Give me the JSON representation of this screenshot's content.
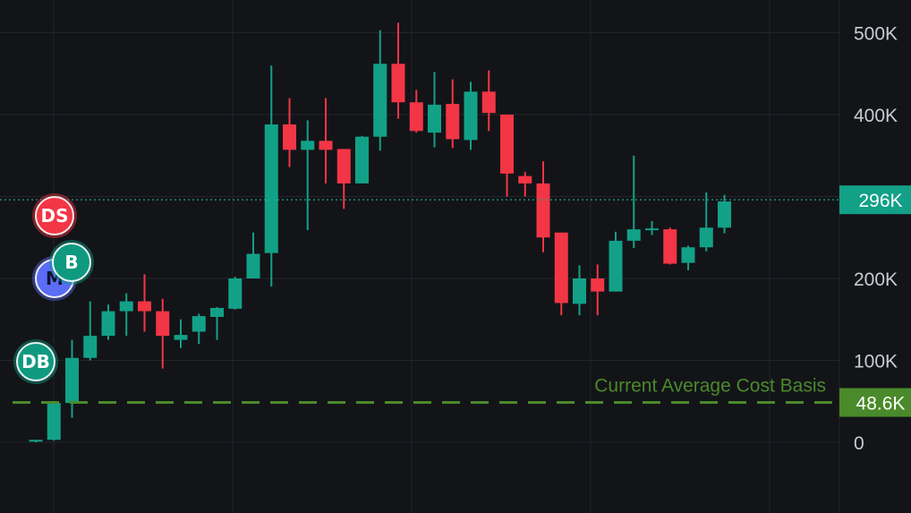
{
  "colors": {
    "background": "#131418",
    "grid": "#23252b",
    "up": "#12a187",
    "down": "#f23645",
    "current_line": "#1fa58a",
    "cost_basis": "#4a8a2a",
    "axis_text": "#c9ccd2",
    "marker_ds": "#f23645",
    "marker_b": "#0f9a80",
    "marker_db": "#0f9a80",
    "marker_m": "#5b6cf5"
  },
  "chart_data": {
    "type": "candlestick",
    "y_axis": {
      "ticks": [
        0,
        100000,
        200000,
        300000,
        400000,
        500000
      ],
      "tick_labels": [
        "0",
        "100K",
        "200K",
        "300K",
        "400K",
        "500K"
      ],
      "ylim": [
        -60000,
        545000
      ],
      "position": "right"
    },
    "grid": true,
    "current_value": {
      "value": 296000,
      "label": "296K"
    },
    "cost_basis": {
      "value": 48600,
      "label": "48.6K",
      "text": "Current Average Cost Basis"
    },
    "candles": [
      {
        "o": 2000,
        "h": 2000,
        "l": 0,
        "c": 3000
      },
      {
        "o": 3000,
        "h": 50000,
        "l": 2000,
        "c": 48000
      },
      {
        "o": 48000,
        "h": 125000,
        "l": 30000,
        "c": 103000
      },
      {
        "o": 103000,
        "h": 172000,
        "l": 100000,
        "c": 130000
      },
      {
        "o": 130000,
        "h": 168000,
        "l": 125000,
        "c": 160000
      },
      {
        "o": 160000,
        "h": 182000,
        "l": 130000,
        "c": 172000
      },
      {
        "o": 172000,
        "h": 205000,
        "l": 135000,
        "c": 160000
      },
      {
        "o": 160000,
        "h": 175000,
        "l": 90000,
        "c": 130000
      },
      {
        "o": 125000,
        "h": 150000,
        "l": 115000,
        "c": 131000
      },
      {
        "o": 135000,
        "h": 157000,
        "l": 120000,
        "c": 154000
      },
      {
        "o": 153000,
        "h": 165000,
        "l": 125000,
        "c": 164000
      },
      {
        "o": 163000,
        "h": 202000,
        "l": 162000,
        "c": 200000
      },
      {
        "o": 200000,
        "h": 256000,
        "l": 200000,
        "c": 230000
      },
      {
        "o": 231000,
        "h": 460000,
        "l": 190000,
        "c": 388000
      },
      {
        "o": 388000,
        "h": 420000,
        "l": 336000,
        "c": 357000
      },
      {
        "o": 357000,
        "h": 393000,
        "l": 259000,
        "c": 368000
      },
      {
        "o": 368000,
        "h": 420000,
        "l": 316000,
        "c": 357000
      },
      {
        "o": 358000,
        "h": 358000,
        "l": 285000,
        "c": 316000
      },
      {
        "o": 316000,
        "h": 374000,
        "l": 316000,
        "c": 373000
      },
      {
        "o": 373000,
        "h": 503000,
        "l": 356000,
        "c": 462000
      },
      {
        "o": 462000,
        "h": 512000,
        "l": 395000,
        "c": 415000
      },
      {
        "o": 415000,
        "h": 430000,
        "l": 378000,
        "c": 380000
      },
      {
        "o": 378000,
        "h": 452000,
        "l": 360000,
        "c": 412000
      },
      {
        "o": 413000,
        "h": 443000,
        "l": 359000,
        "c": 370000
      },
      {
        "o": 369000,
        "h": 440000,
        "l": 357000,
        "c": 428000
      },
      {
        "o": 428000,
        "h": 454000,
        "l": 380000,
        "c": 402000
      },
      {
        "o": 400000,
        "h": 400000,
        "l": 300000,
        "c": 328000
      },
      {
        "o": 325000,
        "h": 330000,
        "l": 300000,
        "c": 316000
      },
      {
        "o": 316000,
        "h": 343000,
        "l": 232000,
        "c": 250000
      },
      {
        "o": 256000,
        "h": 256000,
        "l": 155000,
        "c": 170000
      },
      {
        "o": 169000,
        "h": 216000,
        "l": 155000,
        "c": 200000
      },
      {
        "o": 200000,
        "h": 217000,
        "l": 155000,
        "c": 184000
      },
      {
        "o": 184000,
        "h": 257000,
        "l": 184000,
        "c": 246000
      },
      {
        "o": 246000,
        "h": 350000,
        "l": 237000,
        "c": 260000
      },
      {
        "o": 260000,
        "h": 270000,
        "l": 253000,
        "c": 261000
      },
      {
        "o": 260000,
        "h": 262000,
        "l": 217000,
        "c": 218000
      },
      {
        "o": 219000,
        "h": 240000,
        "l": 210000,
        "c": 238000
      },
      {
        "o": 238000,
        "h": 305000,
        "l": 233000,
        "c": 262000
      },
      {
        "o": 262000,
        "h": 302000,
        "l": 255000,
        "c": 294000
      }
    ],
    "markers": [
      {
        "label": "DS",
        "candle": 1
      },
      {
        "label": "M",
        "candle": 1
      },
      {
        "label": "B",
        "candle": 2
      },
      {
        "label": "DB",
        "candle": 1
      }
    ]
  }
}
